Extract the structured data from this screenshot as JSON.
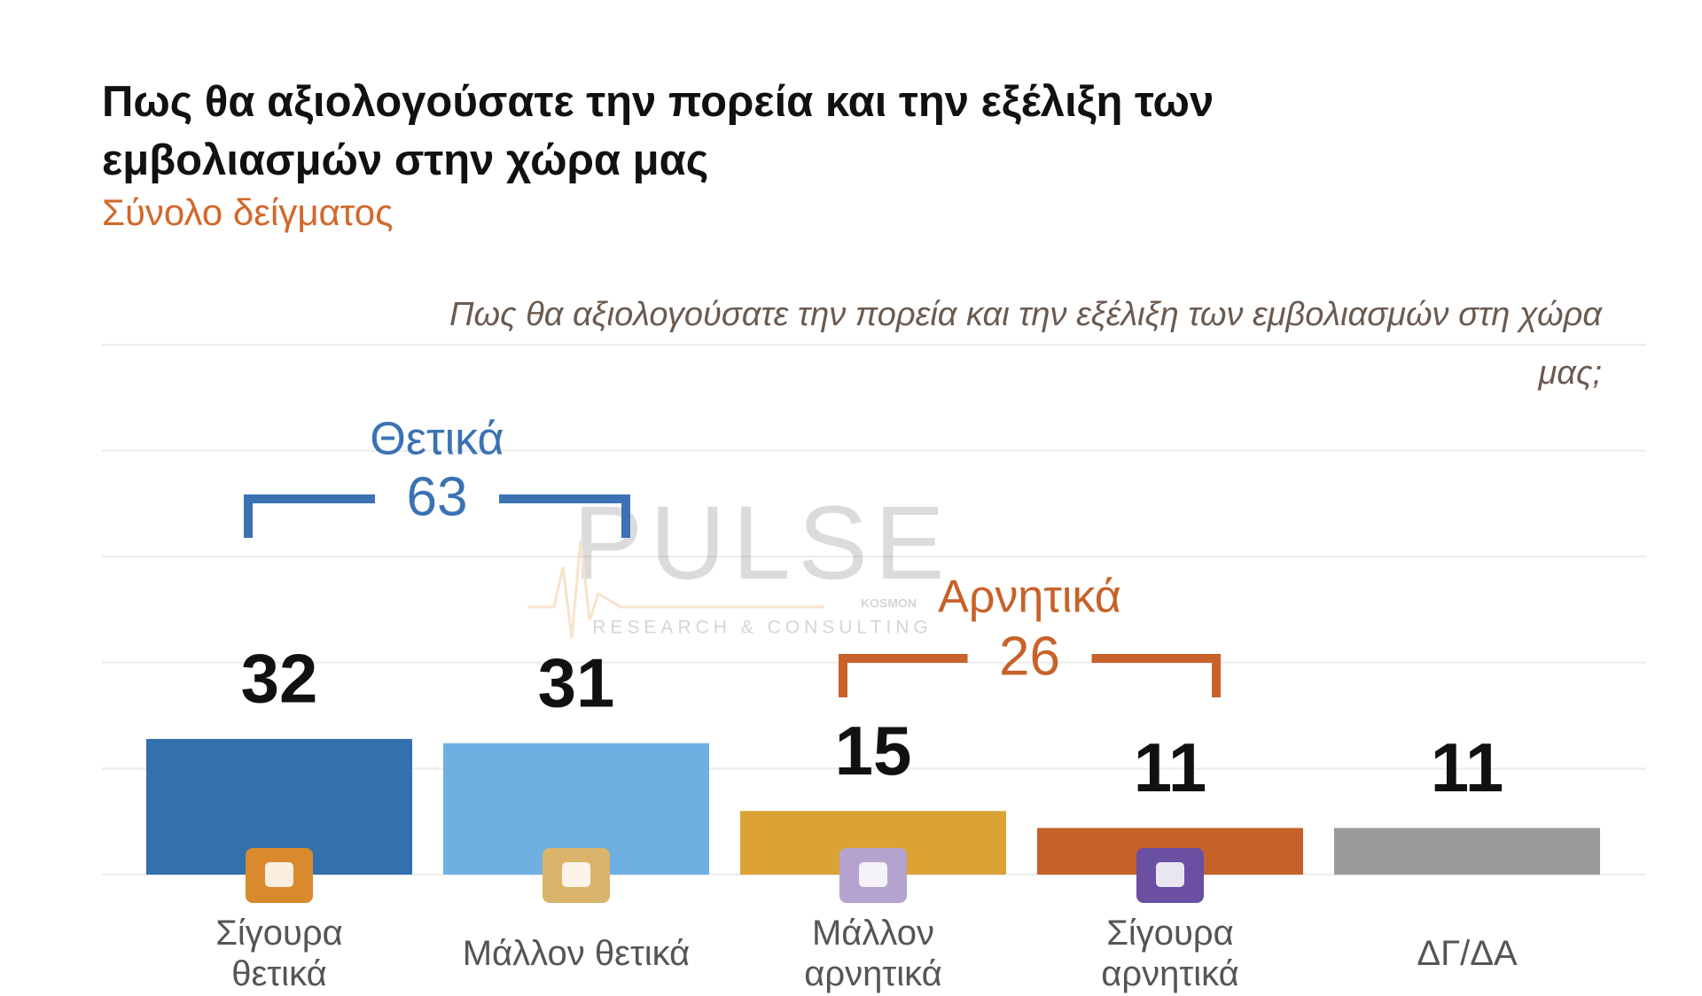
{
  "chart_data": {
    "type": "bar",
    "title": "Πως θα αξιολογούσατε την πορεία και την εξέλιξη των εμβολιασμών στην χώρα μας",
    "subtitle": "Σύνολο δείγματος",
    "question": "Πως θα αξιολογούσατε την πορεία και την εξέλιξη των εμβολιασμών στη χώρα μας;",
    "categories": [
      "Σίγουρα θετικά",
      "Μάλλον θετικά",
      "Μάλλον αρνητικά",
      "Σίγουρα αρνητικά",
      "ΔΓ/ΔΑ"
    ],
    "values": [
      32,
      31,
      15,
      11,
      11
    ],
    "colors": [
      "#3370ae",
      "#6eb0e2",
      "#dba336",
      "#c5622a",
      "#9b9b9b"
    ],
    "groups": [
      {
        "label": "Θετικά",
        "value": 63,
        "color": "#3a72b3"
      },
      {
        "label": "Αρνητικά",
        "value": 26,
        "color": "#c8622a"
      }
    ],
    "watermark": {
      "name": "PULSE",
      "sub": "RESEARCH & CONSULTING",
      "tag": "KOSMON"
    },
    "ylim": [
      0,
      125
    ],
    "yticks": [
      0,
      25,
      50,
      75,
      100,
      125
    ],
    "grid": true
  }
}
